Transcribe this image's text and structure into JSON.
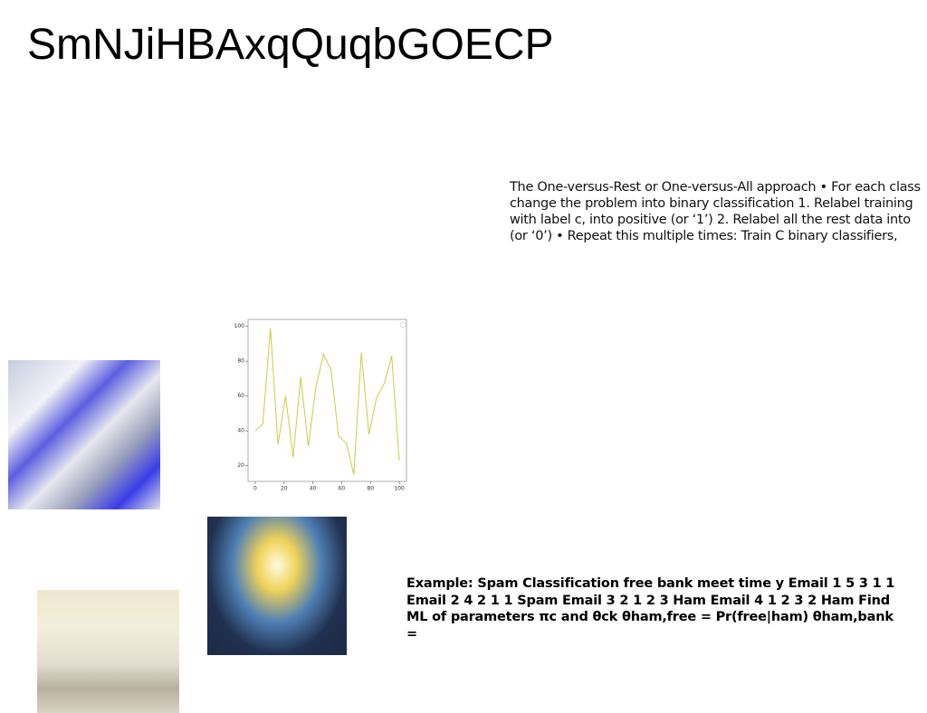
{
  "title": "SmNJiHBAxqQuqbGOECP",
  "paragraphs": [
    "The One-versus-Rest or One-versus-All approach • For each class change the problem into binary classification 1. Relabel training with label c, into positive (or ‘1’) 2. Relabel all the rest data into (or ‘0’) • Repeat this multiple times: Train C binary classifiers,",
    "Example: Spam Classification free bank meet time y Email 1 5 3 1 1 Email 2 4 2 1 1 Spam Email 3 2 1 2 3 Ham Email 4 1 2 3 2 Ham Find ML of parameters πc and θck θham,free = Pr(free|ham) θham,bank ="
  ],
  "chart_data": {
    "type": "line",
    "x": [
      0,
      5.26,
      10.53,
      15.79,
      21.05,
      26.32,
      31.58,
      36.84,
      42.11,
      47.37,
      52.63,
      57.89,
      63.16,
      68.42,
      73.68,
      78.95,
      84.21,
      89.47,
      94.74,
      100
    ],
    "values": [
      40,
      44,
      99,
      32,
      60,
      25,
      71,
      31,
      65,
      84,
      75,
      37,
      33,
      15,
      85,
      38,
      59,
      67,
      83,
      23
    ],
    "color": "#c9cc45",
    "xlim": [
      -5,
      105
    ],
    "ylim": [
      11,
      104
    ],
    "xticks": [
      0,
      20,
      40,
      60,
      80,
      100
    ],
    "yticks": [
      20,
      40,
      60,
      80,
      100
    ]
  }
}
